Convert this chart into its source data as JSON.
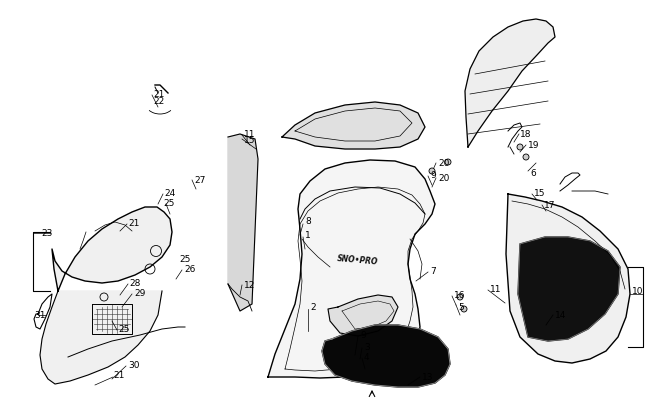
{
  "background_color": "#ffffff",
  "line_color": "#000000",
  "text_color": "#000000",
  "figsize": [
    6.5,
    4.06
  ],
  "dpi": 100
}
